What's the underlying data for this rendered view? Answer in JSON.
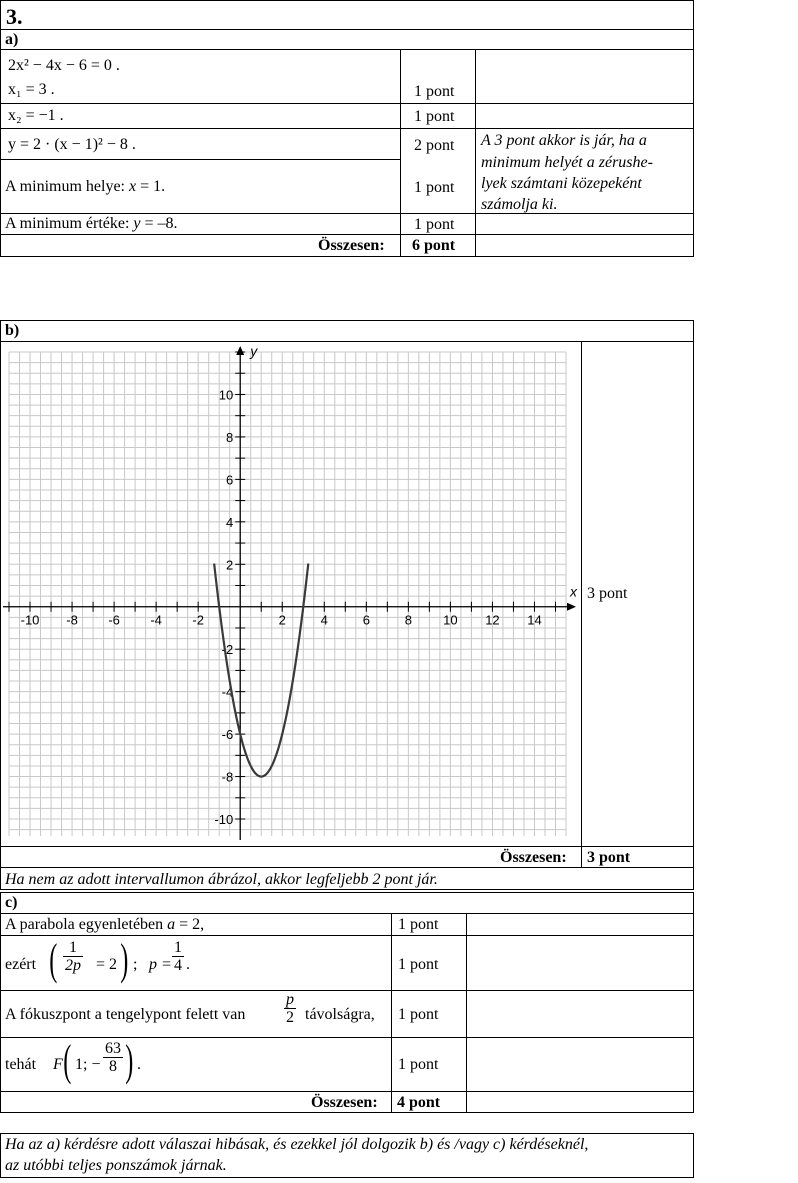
{
  "problem_number": "3.",
  "part_a": {
    "label": "a)",
    "eq_main": "2x² − 4x − 6 = 0 .",
    "x1": "x₁ = 3 .",
    "x2": "x₂ = −1 .",
    "vertex_form": "y = 2 · (x − 1)² − 8 .",
    "min_place_prefix": "A minimum helye: ",
    "min_place_var": "x",
    "min_place_suffix": " = 1.",
    "min_value_prefix": "A minimum értéke: ",
    "min_value_var": "y",
    "min_value_suffix": " = –8.",
    "points": [
      "1 pont",
      "1 pont",
      "2 pont",
      "1 pont",
      "1 pont"
    ],
    "note": [
      "A 3 pont akkor is jár, ha a",
      "minimum helyét a zérushe-",
      "lyek számtani közepeként",
      "számolja ki."
    ],
    "total_label": "Összesen:",
    "total_points": "6 pont"
  },
  "part_b": {
    "label": "b)",
    "points": "3 pont",
    "total_label": "Összesen:",
    "total_points": "3 pont",
    "note": "Ha nem az adott intervallumon ábrázol, akkor legfeljebb 2 pont jár."
  },
  "part_c": {
    "label": "c)",
    "row1_prefix": "A parabola egyenletében ",
    "row1_var": "a",
    "row1_suffix": " = 2,",
    "row2_prefix": "ezért",
    "row2_frac_num": "1",
    "row2_frac_den": "2p",
    "row2_eq": "= 2",
    "row2_sep": ";",
    "row2_p": "p =",
    "row2_p_num": "1",
    "row2_p_den": "4",
    "row2_end": ".",
    "row3_prefix": "A fókuszpont a tengelypont felett van",
    "row3_frac_num": "p",
    "row3_frac_den": "2",
    "row3_suffix": "távolságra,",
    "row4_prefix": "tehát",
    "row4_F": "F",
    "row4_inner": "1; −",
    "row4_num": "63",
    "row4_den": "8",
    "row4_end": ".",
    "points": [
      "1 pont",
      "1 pont",
      "1 pont",
      "1 pont"
    ],
    "total_label": "Összesen:",
    "total_points": "4 pont"
  },
  "final_note": [
    "Ha az a) kérdésre adott válaszai hibásak, és ezekkel jól dolgozik b) és /vagy c) kérdéseknél,",
    "az utóbbi teljes ponszámok járnak."
  ],
  "chart_data": {
    "type": "line",
    "title": "",
    "xlabel": "x",
    "ylabel": "y",
    "xlim": [
      -11,
      15.5
    ],
    "ylim": [
      -10.8,
      12
    ],
    "x_ticks": [
      -10,
      -8,
      -6,
      -4,
      -2,
      2,
      4,
      6,
      8,
      10,
      12,
      14
    ],
    "y_ticks": [
      -10,
      -8,
      -6,
      -4,
      -2,
      2,
      4,
      6,
      8,
      10
    ],
    "x_tick_labels": [
      "-10",
      "-8",
      "-6",
      "-4",
      "-2",
      "2",
      "4",
      "6",
      "8",
      "10",
      "12",
      "14"
    ],
    "y_tick_labels": [
      "-10",
      "-8",
      "-6",
      "-4",
      "-2",
      "2",
      "4",
      "6",
      "8",
      "10"
    ],
    "grid": true,
    "series": [
      {
        "name": "y = 2(x-1)^2 - 8",
        "x": [
          -1.06,
          -1.0,
          -0.75,
          -0.5,
          -0.25,
          0.0,
          0.25,
          0.5,
          0.75,
          1.0,
          1.25,
          1.5,
          1.75,
          2.0,
          2.25,
          2.5,
          2.75,
          3.0,
          3.06
        ],
        "y": [
          0.49,
          0.0,
          -1.88,
          -3.5,
          -4.88,
          -6.0,
          -6.88,
          -7.5,
          -7.88,
          -8.0,
          -7.88,
          -7.5,
          -6.88,
          -6.0,
          -4.88,
          -3.5,
          -1.88,
          0.0,
          0.49
        ]
      }
    ],
    "curve_x_range": [
      -1.24,
      3.24
    ],
    "color": "#3a3a3a"
  }
}
